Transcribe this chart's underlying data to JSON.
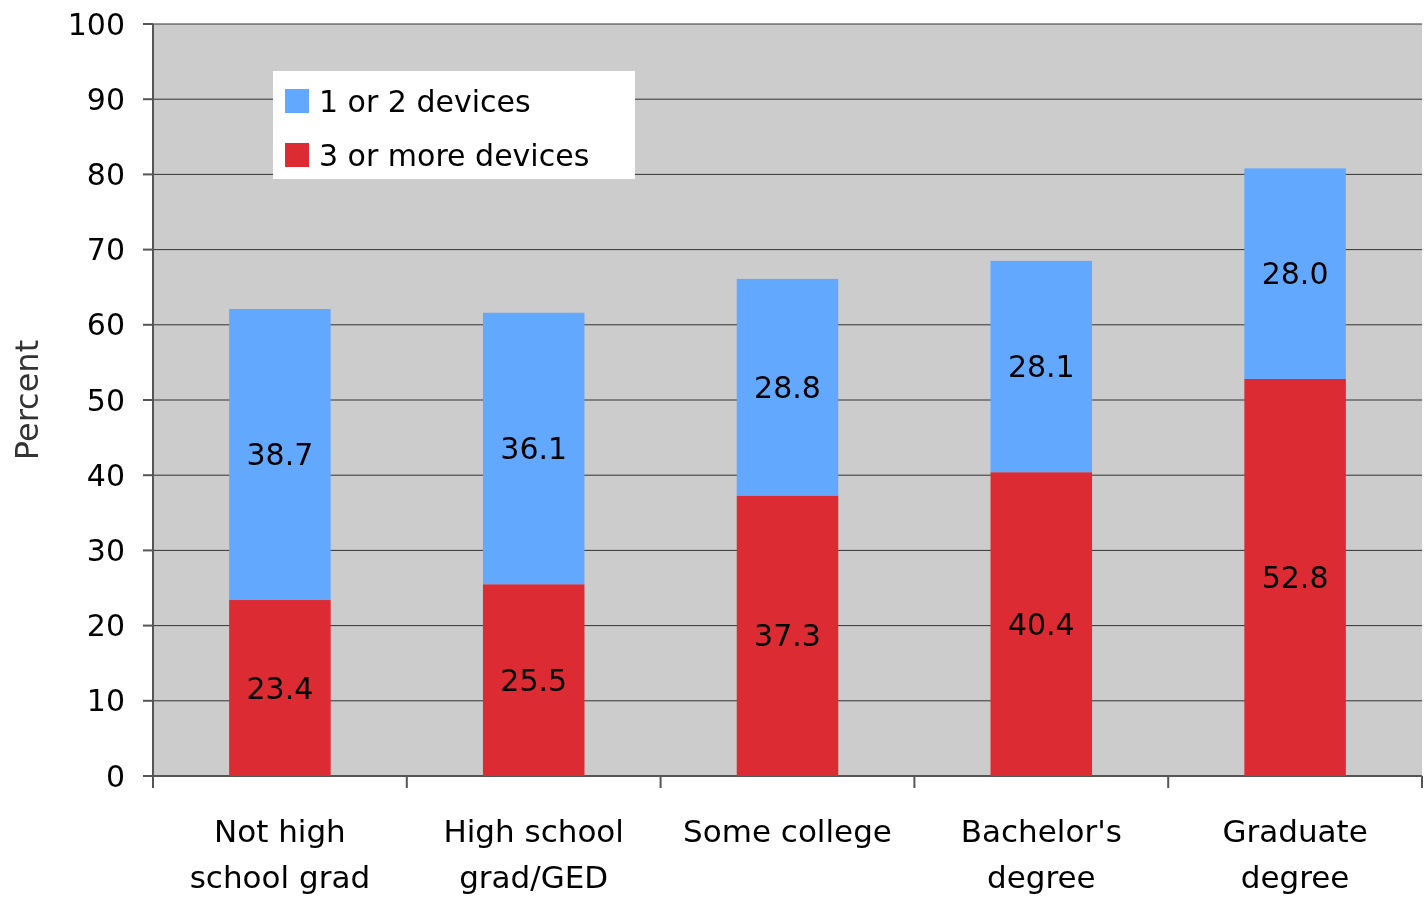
{
  "chart_data": {
    "type": "bar",
    "stacked": true,
    "ylabel": "Percent",
    "categories": [
      "Not high school grad",
      "High school grad/GED",
      "Some college",
      "Bachelor's degree",
      "Graduate degree"
    ],
    "series": [
      {
        "name": "3 or more devices",
        "color": "#dc2b33",
        "values": [
          23.4,
          25.5,
          37.3,
          40.4,
          52.8
        ],
        "value_labels": [
          "23.4",
          "25.5",
          "37.3",
          "40.4",
          "52.8"
        ]
      },
      {
        "name": "1 or 2 devices",
        "color": "#63a8ff",
        "values": [
          38.7,
          36.1,
          28.8,
          28.1,
          28.0
        ],
        "value_labels": [
          "38.7",
          "36.1",
          "28.8",
          "28.1",
          "28.0"
        ]
      }
    ],
    "ylim": [
      0,
      100
    ],
    "yticks": [
      0,
      10,
      20,
      30,
      40,
      50,
      60,
      70,
      80,
      90,
      100
    ],
    "grid": "y",
    "legend": "top left"
  }
}
